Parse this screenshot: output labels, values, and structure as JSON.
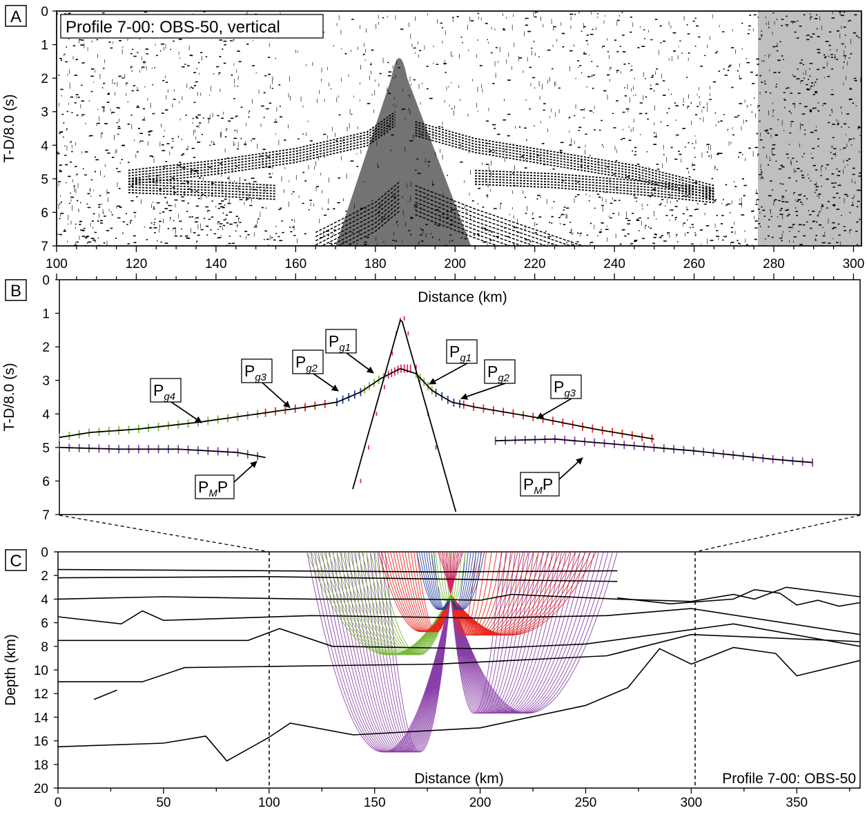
{
  "panel_labels": [
    "A",
    "B",
    "C"
  ],
  "panel_a": {
    "title": "Profile 7-00: OBS-50, vertical",
    "ylabel": "T-D/8.0 (s)",
    "y_ticks": [
      "0",
      "1",
      "2",
      "3",
      "4",
      "5",
      "6",
      "7"
    ],
    "x_ticks": [
      "100",
      "120",
      "140",
      "160",
      "180",
      "200",
      "220",
      "240",
      "260",
      "280",
      "300"
    ]
  },
  "panel_b": {
    "xlabel": "Distance (km)",
    "ylabel": "T-D/8.0 (s)",
    "y_ticks": [
      "0",
      "1",
      "2",
      "3",
      "4",
      "5",
      "6",
      "7"
    ],
    "phase_labels": [
      {
        "main": "P",
        "sub": "g4",
        "tail": ""
      },
      {
        "main": "P",
        "sub": "g3",
        "tail": ""
      },
      {
        "main": "P",
        "sub": "g2",
        "tail": ""
      },
      {
        "main": "P",
        "sub": "g1",
        "tail": ""
      },
      {
        "main": "P",
        "sub": "g1",
        "tail": ""
      },
      {
        "main": "P",
        "sub": "g2",
        "tail": ""
      },
      {
        "main": "P",
        "sub": "g3",
        "tail": ""
      },
      {
        "main": "P",
        "sub": "M",
        "tail": "P"
      },
      {
        "main": "P",
        "sub": "M",
        "tail": "P"
      }
    ]
  },
  "panel_c": {
    "xlabel": "Distance (km)",
    "ylabel": "Depth (km)",
    "caption": "Profile 7-00: OBS-50",
    "x_ticks": [
      "0",
      "50",
      "100",
      "150",
      "200",
      "250",
      "300",
      "350"
    ],
    "y_ticks": [
      "0",
      "2",
      "4",
      "6",
      "8",
      "10",
      "12",
      "14",
      "16",
      "18",
      "20"
    ]
  },
  "colors": {
    "Pg1": "#e8281e",
    "Pg2": "#2a3f9e",
    "Pg3": "#e8281e",
    "Pg4": "#7ab83a",
    "PmP": "#8a3fa8",
    "direct": "#e0206a"
  }
}
